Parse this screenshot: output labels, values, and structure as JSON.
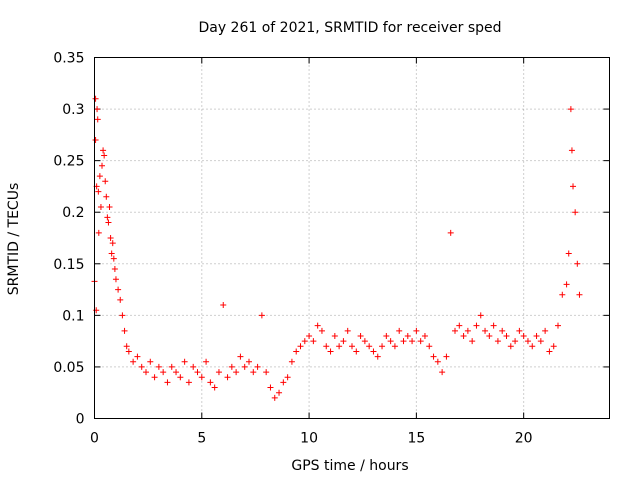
{
  "chart_data": {
    "type": "scatter",
    "title": "Day 261 of 2021, SRMTID for receiver sped",
    "xlabel": "GPS time / hours",
    "ylabel": "SRMTID / TECUs",
    "xlim": [
      0,
      24
    ],
    "ylim": [
      0,
      0.35
    ],
    "xticks": [
      0,
      5,
      10,
      15,
      20
    ],
    "xtick_labels": [
      "0",
      "5",
      "10",
      "15",
      "20"
    ],
    "yticks": [
      0,
      0.05,
      0.1,
      0.15,
      0.2,
      0.25,
      0.3,
      0.35
    ],
    "ytick_labels": [
      "0",
      "0.05",
      "0.1",
      "0.15",
      "0.2",
      "0.25",
      "0.3",
      "0.35"
    ],
    "grid": true,
    "marker": "plus",
    "color": "#ff0000",
    "series": [
      {
        "name": "SRMTID",
        "points": [
          [
            0.0,
            0.133
          ],
          [
            0.05,
            0.31
          ],
          [
            0.05,
            0.27
          ],
          [
            0.08,
            0.105
          ],
          [
            0.1,
            0.225
          ],
          [
            0.12,
            0.3
          ],
          [
            0.15,
            0.29
          ],
          [
            0.18,
            0.22
          ],
          [
            0.2,
            0.18
          ],
          [
            0.25,
            0.235
          ],
          [
            0.3,
            0.205
          ],
          [
            0.35,
            0.245
          ],
          [
            0.4,
            0.26
          ],
          [
            0.45,
            0.255
          ],
          [
            0.5,
            0.23
          ],
          [
            0.55,
            0.215
          ],
          [
            0.6,
            0.195
          ],
          [
            0.65,
            0.19
          ],
          [
            0.7,
            0.205
          ],
          [
            0.75,
            0.175
          ],
          [
            0.8,
            0.16
          ],
          [
            0.85,
            0.17
          ],
          [
            0.9,
            0.155
          ],
          [
            0.95,
            0.145
          ],
          [
            1.0,
            0.135
          ],
          [
            1.1,
            0.125
          ],
          [
            1.2,
            0.115
          ],
          [
            1.3,
            0.1
          ],
          [
            1.4,
            0.085
          ],
          [
            1.5,
            0.07
          ],
          [
            1.6,
            0.065
          ],
          [
            1.8,
            0.055
          ],
          [
            2.0,
            0.06
          ],
          [
            2.2,
            0.05
          ],
          [
            2.4,
            0.045
          ],
          [
            2.6,
            0.055
          ],
          [
            2.8,
            0.04
          ],
          [
            3.0,
            0.05
          ],
          [
            3.2,
            0.045
          ],
          [
            3.4,
            0.035
          ],
          [
            3.6,
            0.05
          ],
          [
            3.8,
            0.045
          ],
          [
            4.0,
            0.04
          ],
          [
            4.2,
            0.055
          ],
          [
            4.4,
            0.035
          ],
          [
            4.6,
            0.05
          ],
          [
            4.8,
            0.045
          ],
          [
            5.0,
            0.04
          ],
          [
            5.2,
            0.055
          ],
          [
            5.4,
            0.035
          ],
          [
            5.6,
            0.03
          ],
          [
            5.8,
            0.045
          ],
          [
            6.0,
            0.11
          ],
          [
            6.2,
            0.04
          ],
          [
            6.4,
            0.05
          ],
          [
            6.6,
            0.045
          ],
          [
            6.8,
            0.06
          ],
          [
            7.0,
            0.05
          ],
          [
            7.2,
            0.055
          ],
          [
            7.4,
            0.045
          ],
          [
            7.6,
            0.05
          ],
          [
            7.8,
            0.1
          ],
          [
            8.0,
            0.045
          ],
          [
            8.2,
            0.03
          ],
          [
            8.4,
            0.02
          ],
          [
            8.6,
            0.025
          ],
          [
            8.8,
            0.035
          ],
          [
            9.0,
            0.04
          ],
          [
            9.2,
            0.055
          ],
          [
            9.4,
            0.065
          ],
          [
            9.6,
            0.07
          ],
          [
            9.8,
            0.075
          ],
          [
            10.0,
            0.08
          ],
          [
            10.2,
            0.075
          ],
          [
            10.4,
            0.09
          ],
          [
            10.6,
            0.085
          ],
          [
            10.8,
            0.07
          ],
          [
            11.0,
            0.065
          ],
          [
            11.2,
            0.08
          ],
          [
            11.4,
            0.07
          ],
          [
            11.6,
            0.075
          ],
          [
            11.8,
            0.085
          ],
          [
            12.0,
            0.07
          ],
          [
            12.2,
            0.065
          ],
          [
            12.4,
            0.08
          ],
          [
            12.6,
            0.075
          ],
          [
            12.8,
            0.07
          ],
          [
            13.0,
            0.065
          ],
          [
            13.2,
            0.06
          ],
          [
            13.4,
            0.07
          ],
          [
            13.6,
            0.08
          ],
          [
            13.8,
            0.075
          ],
          [
            14.0,
            0.07
          ],
          [
            14.2,
            0.085
          ],
          [
            14.4,
            0.075
          ],
          [
            14.6,
            0.08
          ],
          [
            14.8,
            0.075
          ],
          [
            15.0,
            0.085
          ],
          [
            15.2,
            0.075
          ],
          [
            15.4,
            0.08
          ],
          [
            15.6,
            0.07
          ],
          [
            15.8,
            0.06
          ],
          [
            16.0,
            0.055
          ],
          [
            16.2,
            0.045
          ],
          [
            16.4,
            0.06
          ],
          [
            16.6,
            0.18
          ],
          [
            16.8,
            0.085
          ],
          [
            17.0,
            0.09
          ],
          [
            17.2,
            0.08
          ],
          [
            17.4,
            0.085
          ],
          [
            17.6,
            0.075
          ],
          [
            17.8,
            0.09
          ],
          [
            18.0,
            0.1
          ],
          [
            18.2,
            0.085
          ],
          [
            18.4,
            0.08
          ],
          [
            18.6,
            0.09
          ],
          [
            18.8,
            0.075
          ],
          [
            19.0,
            0.085
          ],
          [
            19.2,
            0.08
          ],
          [
            19.4,
            0.07
          ],
          [
            19.6,
            0.075
          ],
          [
            19.8,
            0.085
          ],
          [
            20.0,
            0.08
          ],
          [
            20.2,
            0.075
          ],
          [
            20.4,
            0.07
          ],
          [
            20.6,
            0.08
          ],
          [
            20.8,
            0.075
          ],
          [
            21.0,
            0.085
          ],
          [
            21.2,
            0.065
          ],
          [
            21.4,
            0.07
          ],
          [
            21.6,
            0.09
          ],
          [
            21.8,
            0.12
          ],
          [
            22.0,
            0.13
          ],
          [
            22.1,
            0.16
          ],
          [
            22.2,
            0.3
          ],
          [
            22.25,
            0.26
          ],
          [
            22.3,
            0.225
          ],
          [
            22.4,
            0.2
          ],
          [
            22.5,
            0.15
          ],
          [
            22.6,
            0.12
          ]
        ]
      }
    ]
  }
}
